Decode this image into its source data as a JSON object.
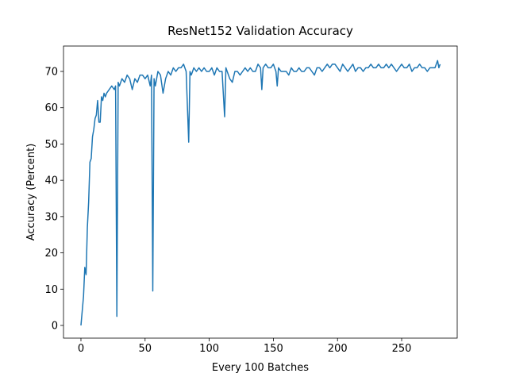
{
  "chart_data": {
    "type": "line",
    "title": "ResNet152 Validation Accuracy",
    "x_label": "Every 100 Batches",
    "y_label": "Accuracy (Percent)",
    "x": [
      0,
      1,
      2,
      3,
      4,
      5,
      6,
      7,
      8,
      9,
      10,
      11,
      12,
      13,
      14,
      15,
      16,
      17,
      18,
      19,
      20,
      22,
      24,
      26,
      27,
      28,
      29,
      30,
      32,
      34,
      36,
      38,
      40,
      42,
      44,
      46,
      48,
      50,
      52,
      54,
      55,
      56,
      57,
      58,
      60,
      62,
      64,
      66,
      68,
      70,
      72,
      74,
      76,
      78,
      80,
      82,
      84,
      85,
      86,
      88,
      90,
      92,
      94,
      96,
      98,
      100,
      102,
      104,
      106,
      108,
      110,
      112,
      113,
      114,
      116,
      118,
      120,
      122,
      124,
      126,
      128,
      130,
      132,
      134,
      136,
      138,
      140,
      141,
      142,
      144,
      146,
      148,
      150,
      152,
      153,
      154,
      156,
      158,
      160,
      162,
      164,
      166,
      168,
      170,
      172,
      174,
      176,
      178,
      180,
      182,
      184,
      186,
      188,
      190,
      192,
      194,
      196,
      198,
      200,
      202,
      204,
      206,
      208,
      210,
      212,
      214,
      216,
      218,
      220,
      222,
      224,
      226,
      228,
      230,
      232,
      234,
      236,
      238,
      240,
      242,
      244,
      246,
      248,
      250,
      252,
      254,
      256,
      258,
      260,
      262,
      264,
      266,
      268,
      270,
      272,
      274,
      276,
      278,
      279,
      280
    ],
    "series": [
      {
        "name": "accuracy",
        "color": "#1f77b4",
        "values": [
          0,
          4,
          8,
          16,
          14,
          27,
          34,
          45,
          46,
          52,
          54,
          57,
          58,
          62,
          56,
          56,
          63,
          62,
          64,
          63,
          64,
          65,
          66,
          65,
          66,
          2.5,
          67,
          66,
          68,
          67,
          69,
          68,
          65,
          68,
          67,
          69,
          69,
          68,
          69,
          66,
          69,
          9.5,
          68,
          66,
          70,
          69,
          64,
          68,
          70,
          69,
          71,
          70,
          71,
          71,
          72,
          70,
          50.5,
          70,
          69,
          71,
          70,
          71,
          70,
          71,
          70,
          70,
          71,
          69,
          71,
          70,
          70,
          57.5,
          71,
          70,
          68,
          67,
          70,
          70,
          69,
          70,
          71,
          70,
          71,
          70,
          70,
          72,
          71,
          65,
          71,
          72,
          71,
          71,
          72,
          70,
          66,
          71,
          70,
          70,
          70,
          69,
          71,
          70,
          70,
          71,
          70,
          70,
          71,
          71,
          70,
          69,
          71,
          71,
          70,
          71,
          72,
          71,
          72,
          72,
          71,
          70,
          72,
          71,
          70,
          71,
          72,
          70,
          71,
          71,
          70,
          71,
          71,
          72,
          71,
          71,
          72,
          71,
          71,
          72,
          71,
          72,
          71,
          70,
          71,
          72,
          71,
          71,
          72,
          70,
          71,
          71,
          72,
          71,
          71,
          70,
          71,
          71,
          71,
          73,
          71,
          72
        ]
      }
    ],
    "xlim": [
      -13.6,
      293.3
    ],
    "ylim": [
      -3.5,
      77
    ],
    "xticks": [
      0,
      50,
      100,
      150,
      200,
      250
    ],
    "yticks": [
      0,
      10,
      20,
      30,
      40,
      50,
      60,
      70
    ]
  }
}
